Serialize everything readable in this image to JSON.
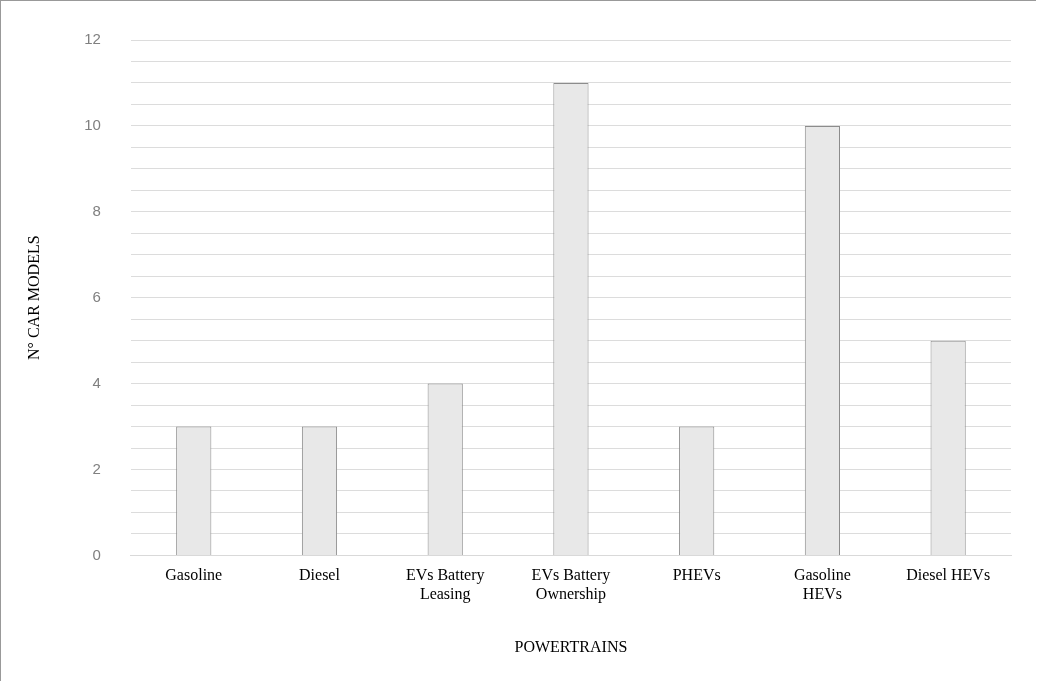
{
  "chart_data": {
    "type": "bar",
    "xlabel": "POWERTRAINS",
    "ylabel": "N° CAR MODELS",
    "categories": [
      "Gasoline",
      "Diesel",
      "EVs Battery Leasing",
      "EVs Battery Ownership",
      "PHEVs",
      "Gasoline HEVs",
      "Diesel HEVs"
    ],
    "values": [
      3,
      3,
      4,
      11,
      3,
      10,
      5
    ],
    "color": "#e8e8e8",
    "ylim": [
      0,
      12
    ],
    "yticks": [
      0,
      {
        "value": 0.5,
        "label": null
      },
      {
        "value": 1,
        "label": null
      },
      {
        "value": 1.5,
        "label": null
      },
      2,
      {
        "value": 2.5,
        "label": null
      },
      {
        "value": 3,
        "label": null
      },
      {
        "value": 3.5,
        "label": null
      },
      4,
      {
        "value": 4.5,
        "label": null
      },
      {
        "value": 5,
        "label": null
      },
      {
        "value": 5.5,
        "label": null
      },
      6,
      {
        "value": 6.5,
        "label": null
      },
      {
        "value": 7,
        "label": null
      },
      {
        "value": 7.5,
        "label": null
      },
      8,
      {
        "value": 8.5,
        "label": null
      },
      {
        "value": 9,
        "label": null
      },
      {
        "value": 9.5,
        "label": null
      },
      10,
      {
        "value": 10.5,
        "label": null
      },
      {
        "value": 11,
        "label": null
      },
      {
        "value": 11.5,
        "label": null
      },
      12
    ],
    "grid": "y"
  }
}
